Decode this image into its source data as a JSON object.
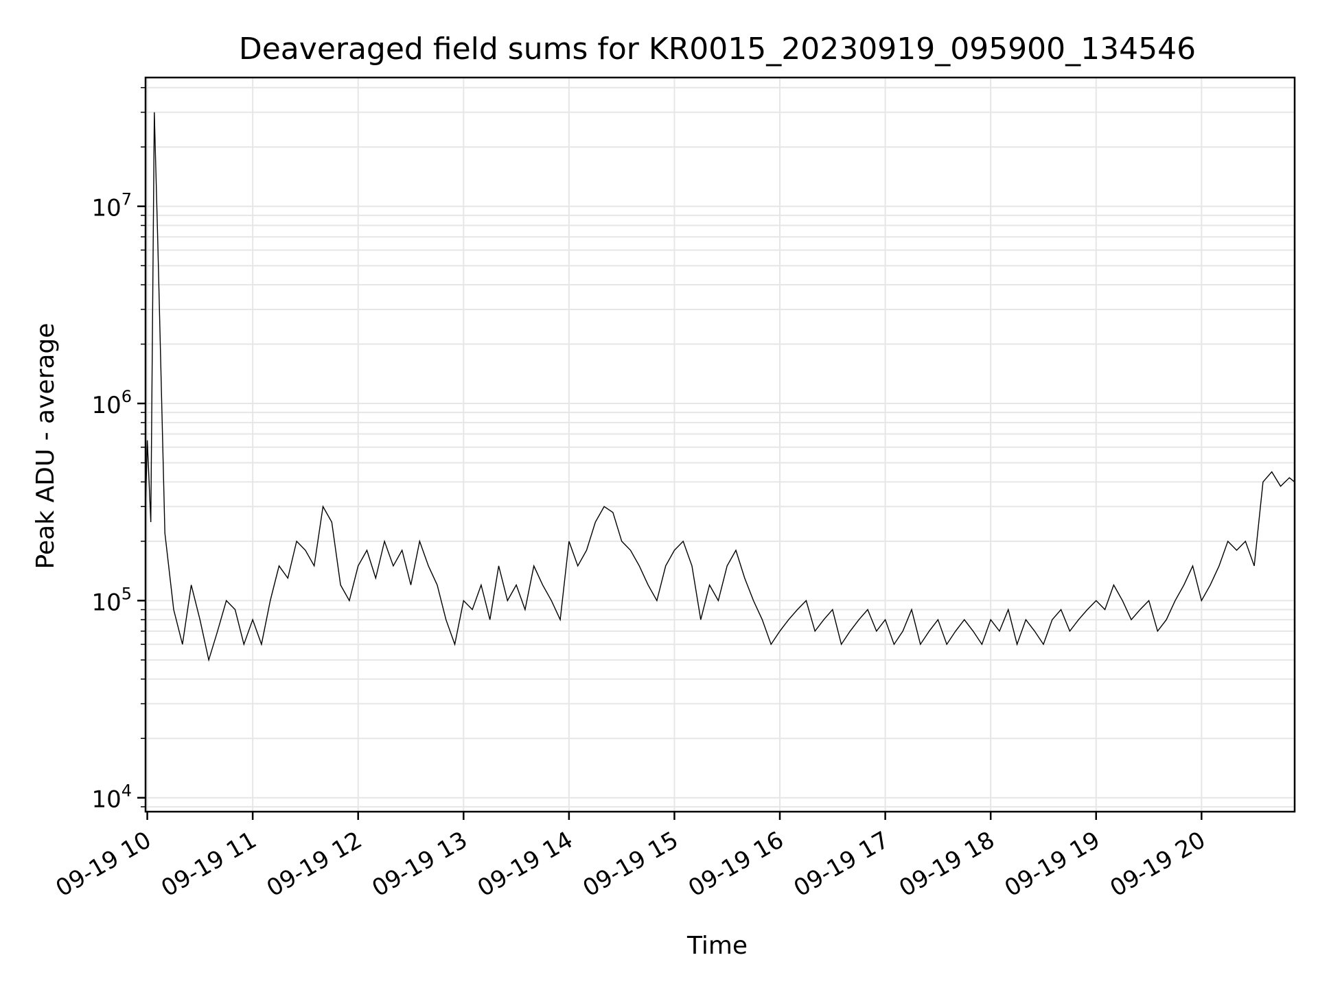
{
  "chart_data": {
    "type": "line",
    "title": "Deaveraged field sums for KR0015_20230919_095900_134546",
    "xlabel": "Time",
    "ylabel": "Peak ADU - average",
    "y_scale": "log",
    "ylim": [
      8500,
      45000000
    ],
    "xlim": [
      "09-19 09:59",
      "09-19 20:53"
    ],
    "grid": true,
    "legend": "none",
    "x_ticks": [
      "09-19 10",
      "09-19 11",
      "09-19 12",
      "09-19 13",
      "09-19 14",
      "09-19 15",
      "09-19 16",
      "09-19 17",
      "09-19 18",
      "09-19 19",
      "09-19 20"
    ],
    "y_ticks": [
      {
        "base": "10",
        "exp": "4",
        "value": 10000
      },
      {
        "base": "10",
        "exp": "5",
        "value": 100000
      },
      {
        "base": "10",
        "exp": "6",
        "value": 1000000
      },
      {
        "base": "10",
        "exp": "7",
        "value": 10000000
      }
    ],
    "series": [
      {
        "color": "#000000",
        "x": [
          "09-19 09:59",
          "09-19 10:00",
          "09-19 10:02",
          "09-19 10:04",
          "09-19 10:06",
          "09-19 10:10",
          "09-19 10:15",
          "09-19 10:20",
          "09-19 10:25",
          "09-19 10:30",
          "09-19 10:35",
          "09-19 10:40",
          "09-19 10:45",
          "09-19 10:50",
          "09-19 10:55",
          "09-19 11:00",
          "09-19 11:05",
          "09-19 11:10",
          "09-19 11:15",
          "09-19 11:20",
          "09-19 11:25",
          "09-19 11:30",
          "09-19 11:35",
          "09-19 11:40",
          "09-19 11:45",
          "09-19 11:50",
          "09-19 11:55",
          "09-19 12:00",
          "09-19 12:05",
          "09-19 12:10",
          "09-19 12:15",
          "09-19 12:20",
          "09-19 12:25",
          "09-19 12:30",
          "09-19 12:35",
          "09-19 12:40",
          "09-19 12:45",
          "09-19 12:50",
          "09-19 12:55",
          "09-19 13:00",
          "09-19 13:05",
          "09-19 13:10",
          "09-19 13:15",
          "09-19 13:20",
          "09-19 13:25",
          "09-19 13:30",
          "09-19 13:35",
          "09-19 13:40",
          "09-19 13:45",
          "09-19 13:50",
          "09-19 13:55",
          "09-19 14:00",
          "09-19 14:05",
          "09-19 14:10",
          "09-19 14:15",
          "09-19 14:20",
          "09-19 14:25",
          "09-19 14:30",
          "09-19 14:35",
          "09-19 14:40",
          "09-19 14:45",
          "09-19 14:50",
          "09-19 14:55",
          "09-19 15:00",
          "09-19 15:05",
          "09-19 15:10",
          "09-19 15:15",
          "09-19 15:20",
          "09-19 15:25",
          "09-19 15:30",
          "09-19 15:35",
          "09-19 15:40",
          "09-19 15:45",
          "09-19 15:50",
          "09-19 15:55",
          "09-19 16:00",
          "09-19 16:05",
          "09-19 16:10",
          "09-19 16:15",
          "09-19 16:20",
          "09-19 16:25",
          "09-19 16:30",
          "09-19 16:35",
          "09-19 16:40",
          "09-19 16:45",
          "09-19 16:50",
          "09-19 16:55",
          "09-19 17:00",
          "09-19 17:05",
          "09-19 17:10",
          "09-19 17:15",
          "09-19 17:20",
          "09-19 17:25",
          "09-19 17:30",
          "09-19 17:35",
          "09-19 17:40",
          "09-19 17:45",
          "09-19 17:50",
          "09-19 17:55",
          "09-19 18:00",
          "09-19 18:05",
          "09-19 18:10",
          "09-19 18:15",
          "09-19 18:20",
          "09-19 18:25",
          "09-19 18:30",
          "09-19 18:35",
          "09-19 18:40",
          "09-19 18:45",
          "09-19 18:50",
          "09-19 18:55",
          "09-19 19:00",
          "09-19 19:05",
          "09-19 19:10",
          "09-19 19:15",
          "09-19 19:20",
          "09-19 19:25",
          "09-19 19:30",
          "09-19 19:35",
          "09-19 19:40",
          "09-19 19:45",
          "09-19 19:50",
          "09-19 19:55",
          "09-19 20:00",
          "09-19 20:05",
          "09-19 20:10",
          "09-19 20:15",
          "09-19 20:20",
          "09-19 20:25",
          "09-19 20:30",
          "09-19 20:35",
          "09-19 20:40",
          "09-19 20:45",
          "09-19 20:50",
          "09-19 20:53"
        ],
        "y": [
          300000,
          650000,
          250000,
          30000000,
          6500000,
          220000,
          90000,
          60000,
          120000,
          80000,
          50000,
          70000,
          100000,
          90000,
          60000,
          80000,
          60000,
          100000,
          150000,
          130000,
          200000,
          180000,
          150000,
          300000,
          250000,
          120000,
          100000,
          150000,
          180000,
          130000,
          200000,
          150000,
          180000,
          120000,
          200000,
          150000,
          120000,
          80000,
          60000,
          100000,
          90000,
          120000,
          80000,
          150000,
          100000,
          120000,
          90000,
          150000,
          120000,
          100000,
          80000,
          200000,
          150000,
          180000,
          250000,
          300000,
          280000,
          200000,
          180000,
          150000,
          120000,
          100000,
          150000,
          180000,
          200000,
          150000,
          80000,
          120000,
          100000,
          150000,
          180000,
          130000,
          100000,
          80000,
          60000,
          70000,
          80000,
          90000,
          100000,
          70000,
          80000,
          90000,
          60000,
          70000,
          80000,
          90000,
          70000,
          80000,
          60000,
          70000,
          90000,
          60000,
          70000,
          80000,
          60000,
          70000,
          80000,
          70000,
          60000,
          80000,
          70000,
          90000,
          60000,
          80000,
          70000,
          60000,
          80000,
          90000,
          70000,
          80000,
          90000,
          100000,
          90000,
          120000,
          100000,
          80000,
          90000,
          100000,
          70000,
          80000,
          100000,
          120000,
          150000,
          100000,
          120000,
          150000,
          200000,
          180000,
          200000,
          150000,
          400000,
          450000,
          380000,
          420000,
          400000
        ]
      }
    ]
  }
}
